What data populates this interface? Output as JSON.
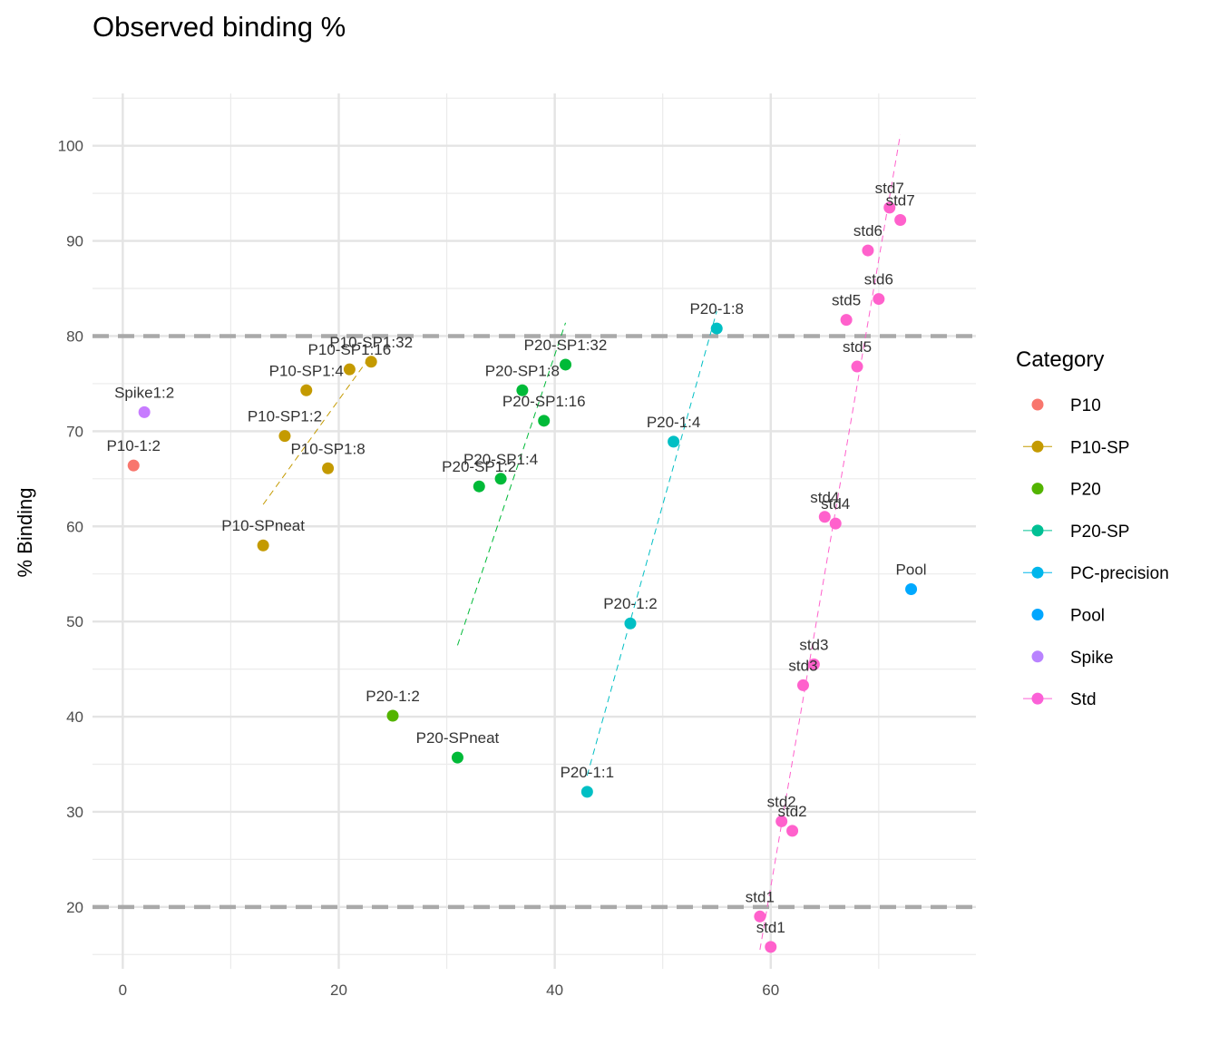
{
  "chart_data": {
    "type": "scatter",
    "title": "Observed binding %",
    "xlabel": "",
    "ylabel": "% Binding",
    "xlim": [
      -2.8,
      79
    ],
    "ylim": [
      13.5,
      105.5
    ],
    "x_ticks": [
      0,
      20,
      40,
      60
    ],
    "y_ticks": [
      20,
      30,
      40,
      50,
      60,
      70,
      80,
      90,
      100
    ],
    "grid": true,
    "reference_lines": [
      20,
      80
    ],
    "legend": {
      "title": "Category",
      "position": "right",
      "entries": [
        {
          "name": "P10",
          "color": "#F8766D",
          "line": false
        },
        {
          "name": "P10-SP",
          "color": "#C49A00",
          "line": true
        },
        {
          "name": "P20",
          "color": "#53B400",
          "line": false
        },
        {
          "name": "P20-SP",
          "color": "#00C094",
          "line": true
        },
        {
          "name": "PC-precision",
          "color": "#00B6EB",
          "line": true
        },
        {
          "name": "Pool",
          "color": "#00A6FF",
          "line": false
        },
        {
          "name": "Spike",
          "color": "#B983FF",
          "line": false
        },
        {
          "name": "Std",
          "color": "#FB61D7",
          "line": true
        }
      ]
    },
    "series": [
      {
        "name": "P10",
        "color": "#F8766D",
        "points": [
          {
            "x": 1,
            "y": 66.4,
            "label": "P10-1:2"
          }
        ]
      },
      {
        "name": "P10-SP",
        "color": "#C49A00",
        "trend": [
          [
            13,
            62.3
          ],
          [
            23,
            78.0
          ]
        ],
        "points": [
          {
            "x": 13,
            "y": 58.0,
            "label": "P10-SPneat"
          },
          {
            "x": 15,
            "y": 69.5,
            "label": "P10-SP1:2"
          },
          {
            "x": 17,
            "y": 74.3,
            "label": "P10-SP1:4"
          },
          {
            "x": 19,
            "y": 66.1,
            "label": "P10-SP1:8"
          },
          {
            "x": 21,
            "y": 76.5,
            "label": "P10-SP1:16"
          },
          {
            "x": 23,
            "y": 77.3,
            "label": "P10-SP1:32"
          }
        ]
      },
      {
        "name": "P20",
        "color": "#53B400",
        "points": [
          {
            "x": 25,
            "y": 40.1,
            "label": "P20-1:2"
          }
        ]
      },
      {
        "name": "P20-SP",
        "color": "#00BA38",
        "trend": [
          [
            31,
            47.5
          ],
          [
            41,
            81.4
          ]
        ],
        "points": [
          {
            "x": 31,
            "y": 35.7,
            "label": "P20-SPneat"
          },
          {
            "x": 33,
            "y": 64.2,
            "label": "P20-SP1:2"
          },
          {
            "x": 35,
            "y": 65.0,
            "label": "P20-SP1:4"
          },
          {
            "x": 37,
            "y": 74.3,
            "label": "P20-SP1:8"
          },
          {
            "x": 39,
            "y": 71.1,
            "label": "P20-SP1:16"
          },
          {
            "x": 41,
            "y": 77.0,
            "label": "P20-SP1:32"
          }
        ]
      },
      {
        "name": "PC-precision",
        "color": "#00BFC4",
        "trend": [
          [
            43,
            33.8
          ],
          [
            55,
            82.6
          ]
        ],
        "points": [
          {
            "x": 43,
            "y": 32.1,
            "label": "P20-1:1"
          },
          {
            "x": 47,
            "y": 49.8,
            "label": "P20-1:2"
          },
          {
            "x": 51,
            "y": 68.9,
            "label": "P20-1:4"
          },
          {
            "x": 55,
            "y": 80.8,
            "label": "P20-1:8"
          }
        ]
      },
      {
        "name": "Pool",
        "color": "#00A9FF",
        "points": [
          {
            "x": 73,
            "y": 53.4,
            "label": "Pool"
          }
        ]
      },
      {
        "name": "Spike",
        "color": "#C77CFF",
        "points": [
          {
            "x": 2,
            "y": 72.0,
            "label": "Spike1:2"
          }
        ]
      },
      {
        "name": "Std",
        "color": "#FF61CC",
        "trend": [
          [
            59,
            15.5
          ],
          [
            72,
            101.2
          ]
        ],
        "points": [
          {
            "x": 59,
            "y": 19.0,
            "label": "std1"
          },
          {
            "x": 60,
            "y": 15.8,
            "label": "std1"
          },
          {
            "x": 61,
            "y": 29.0,
            "label": "std2"
          },
          {
            "x": 62,
            "y": 28.0,
            "label": "std2"
          },
          {
            "x": 63,
            "y": 43.3,
            "label": "std3"
          },
          {
            "x": 64,
            "y": 45.5,
            "label": "std3"
          },
          {
            "x": 65,
            "y": 61.0,
            "label": "std4"
          },
          {
            "x": 66,
            "y": 60.3,
            "label": "std4"
          },
          {
            "x": 67,
            "y": 81.7,
            "label": "std5"
          },
          {
            "x": 68,
            "y": 76.8,
            "label": "std5"
          },
          {
            "x": 69,
            "y": 89.0,
            "label": "std6"
          },
          {
            "x": 70,
            "y": 83.9,
            "label": "std6"
          },
          {
            "x": 71,
            "y": 93.5,
            "label": "std7"
          },
          {
            "x": 72,
            "y": 92.2,
            "label": "std7"
          }
        ]
      }
    ]
  }
}
